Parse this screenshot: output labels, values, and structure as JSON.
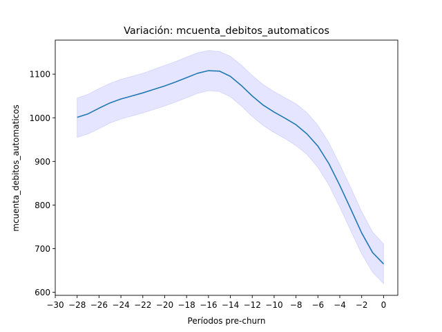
{
  "chart_data": {
    "type": "line",
    "title": "Variación: mcuenta_debitos_automaticos",
    "xlabel": "Períodos pre-churn",
    "ylabel": "mcuenta_debitos_automaticos",
    "xlim": [
      -30,
      1.3
    ],
    "ylim": [
      593,
      1178
    ],
    "x_ticks": [
      -30,
      -28,
      -26,
      -24,
      -22,
      -20,
      -18,
      -16,
      -14,
      -12,
      -10,
      -8,
      -6,
      -4,
      -2,
      0
    ],
    "y_ticks": [
      600,
      700,
      800,
      900,
      1000,
      1100
    ],
    "grid": false,
    "line_color": "#1f77b4",
    "band_color": "#0000ff",
    "series": [
      {
        "x": [
          -28,
          -27,
          -26,
          -25,
          -24,
          -23,
          -22,
          -21,
          -20,
          -19,
          -18,
          -17,
          -16,
          -15,
          -14,
          -13,
          -12,
          -11,
          -10,
          -9,
          -8,
          -7,
          -6,
          -5,
          -4,
          -3,
          -2,
          -1,
          0
        ],
        "values": [
          1001,
          1009,
          1022,
          1034,
          1043,
          1050,
          1057,
          1065,
          1073,
          1082,
          1092,
          1102,
          1108,
          1107,
          1095,
          1074,
          1050,
          1029,
          1013,
          999,
          984,
          963,
          935,
          895,
          845,
          791,
          736,
          691,
          665
        ],
        "lower": [
          955,
          963,
          975,
          988,
          997,
          1004,
          1011,
          1019,
          1027,
          1036,
          1046,
          1056,
          1062,
          1060,
          1048,
          1027,
          1003,
          982,
          966,
          952,
          936,
          916,
          886,
          846,
          795,
          741,
          688,
          646,
          620
        ],
        "upper": [
          1045,
          1054,
          1067,
          1079,
          1088,
          1095,
          1102,
          1111,
          1120,
          1129,
          1139,
          1149,
          1154,
          1152,
          1141,
          1121,
          1097,
          1076,
          1060,
          1046,
          1032,
          1012,
          983,
          943,
          893,
          840,
          785,
          738,
          711
        ]
      }
    ]
  }
}
